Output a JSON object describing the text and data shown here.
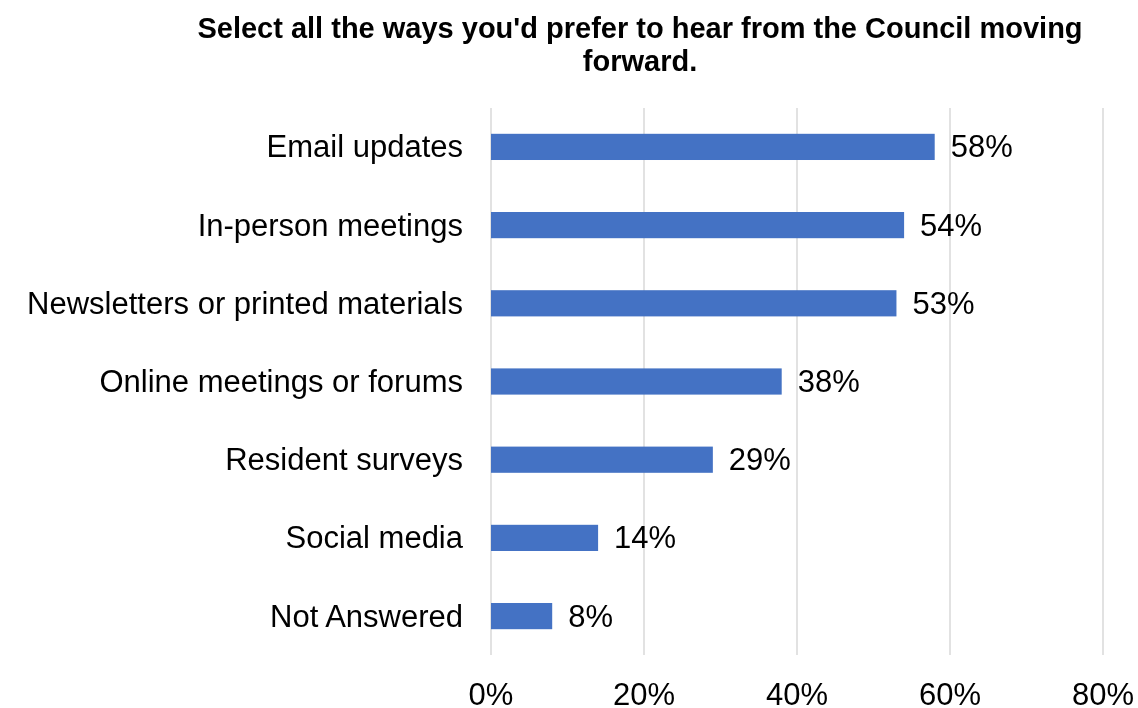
{
  "chart_data": {
    "type": "bar",
    "orientation": "horizontal",
    "title": "Select all the ways you'd prefer to hear from the Council moving forward.",
    "categories": [
      "Email updates",
      "In-person meetings",
      "Newsletters or printed materials",
      "Online meetings or forums",
      "Resident surveys",
      "Social media",
      "Not Answered"
    ],
    "values": [
      58,
      54,
      53,
      38,
      29,
      14,
      8
    ],
    "color": "#4472c4",
    "value_labels": [
      "58%",
      "54%",
      "53%",
      "38%",
      "29%",
      "14%",
      "8%"
    ],
    "xlim": [
      0,
      80
    ],
    "xticks": [
      {
        "value": 0,
        "label": "0%"
      },
      {
        "value": 20,
        "label": "20%"
      },
      {
        "value": 40,
        "label": "40%"
      },
      {
        "value": 60,
        "label": "60%"
      },
      {
        "value": 80,
        "label": "80%"
      }
    ],
    "grid": "x"
  }
}
